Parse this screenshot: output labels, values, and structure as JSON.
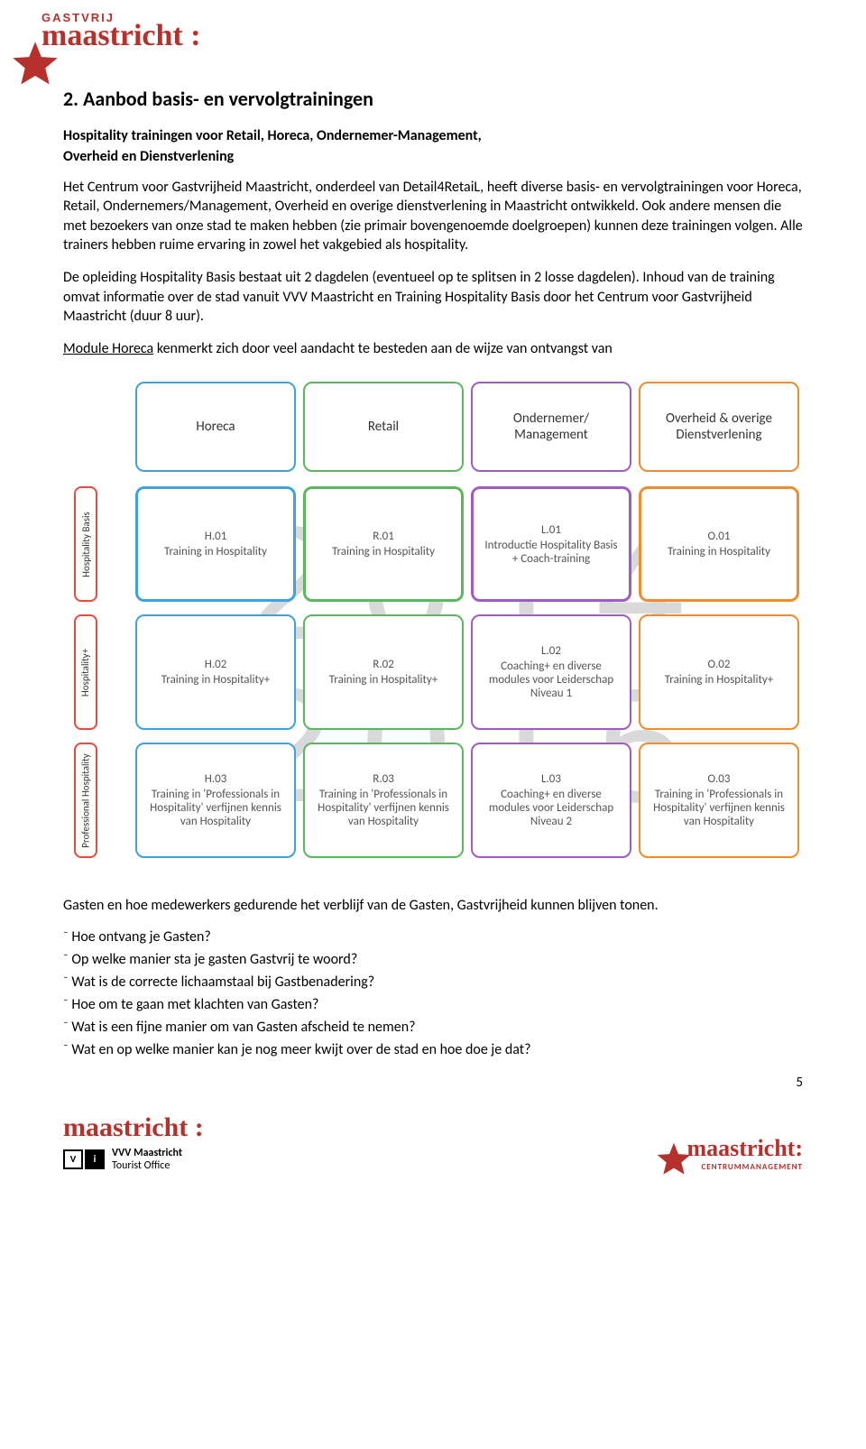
{
  "header": {
    "top": "GASTVRIJ",
    "main": "maastricht :"
  },
  "section": {
    "title": "2. Aanbod basis- en vervolgtrainingen",
    "subtitle_line1": "Hospitality trainingen voor Retail, Horeca, Ondernemer-Management,",
    "subtitle_line2": "Overheid en Dienstverlening",
    "para1": "Het Centrum voor Gastvrijheid Maastricht, onderdeel van Detail4RetaiL, heeft diverse basis- en vervolgtrainingen voor Horeca, Retail, Ondernemers/Management, Overheid en overige dienstverlening in Maastricht ontwikkeld. Ook andere mensen die met bezoekers van onze stad te maken hebben (zie primair bovengenoemde doelgroepen) kunnen deze trainingen volgen. Alle trainers hebben ruime ervaring in zowel het vakgebied als hospitality.",
    "para2": "De opleiding Hospitality Basis bestaat uit 2 dagdelen (eventueel op te splitsen in 2 losse dagdelen). Inhoud van de training omvat informatie over de stad vanuit VVV Maastricht en Training Hospitality Basis door het Centrum voor Gastvrijheid Maastricht (duur 8 uur).",
    "module_label": "Module Horeca",
    "module_rest": " kenmerkt zich door veel aandacht te besteden aan de wijze van ontvangst van",
    "para_after": "Gasten en hoe medewerkers gedurende het verblijf van de Gasten, Gastvrijheid kunnen blijven tonen.",
    "bullets": [
      "Hoe ontvang je Gasten?",
      "Op welke manier sta je gasten Gastvrij te woord?",
      "Wat is de correcte lichaamstaal bij Gastbenadering?",
      "Hoe om te gaan met klachten van Gasten?",
      "Wat is een fijne manier om van Gasten afscheid te nemen?",
      "Wat en op welke manier kan je nog meer kwijt over de stad en hoe doe je dat?"
    ]
  },
  "diagram": {
    "watermark1": "2014",
    "watermark2": "2015",
    "columns": [
      {
        "label": "Horeca",
        "color": "c-blue"
      },
      {
        "label": "Retail",
        "color": "c-green"
      },
      {
        "label": "Ondernemer/\nManagement",
        "color": "c-purple"
      },
      {
        "label": "Overheid & overige\nDienstverlening",
        "color": "c-orange"
      }
    ],
    "side_labels": [
      "Hospitality Basis",
      "Hospitality+",
      "Professional Hospitality"
    ],
    "rows": [
      [
        {
          "code": "H.01",
          "text": "Training in Hospitality"
        },
        {
          "code": "R.01",
          "text": "Training in Hospitality"
        },
        {
          "code": "L.01",
          "text": "Introductie Hospitality Basis + Coach-training"
        },
        {
          "code": "O.01",
          "text": "Training in Hospitality"
        }
      ],
      [
        {
          "code": "H.02",
          "text": "Training in Hospitality+"
        },
        {
          "code": "R.02",
          "text": "Training in Hospitality+"
        },
        {
          "code": "L.02",
          "text": "Coaching+ en diverse modules voor Leiderschap Niveau 1"
        },
        {
          "code": "O.02",
          "text": "Training in Hospitality+"
        }
      ],
      [
        {
          "code": "H.03",
          "text": "Training in 'Professionals in Hospitality' verfijnen kennis van Hospitality"
        },
        {
          "code": "R.03",
          "text": "Training in 'Professionals in Hospitality' verfijnen kennis van Hospitality"
        },
        {
          "code": "L.03",
          "text": "Coaching+ en diverse modules voor Leiderschap Niveau 2"
        },
        {
          "code": "O.03",
          "text": "Training in 'Professionals in Hospitality' verfijnen kennis van Hospitality"
        }
      ]
    ],
    "thick_row": 0
  },
  "footer": {
    "left_main": "maastricht :",
    "left_sub1": "VVV Maastricht",
    "left_sub2": "Tourist Office",
    "right_main": "maastricht:",
    "right_sub": "CENTRUMMANAGEMENT",
    "page": "5"
  },
  "colors": {
    "brand": "#b7312c",
    "blue": "#3ea3dc",
    "green": "#5cb85c",
    "purple": "#a05cc4",
    "orange": "#f08c2e",
    "red": "#e84c3d",
    "watermark": "#d9d9d9"
  }
}
